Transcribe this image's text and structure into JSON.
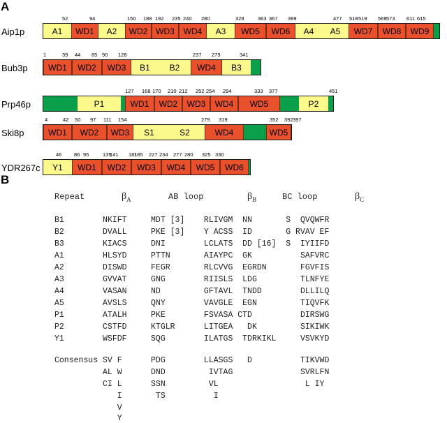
{
  "panel_a": {
    "letter": "A"
  },
  "panel_b": {
    "letter": "B"
  },
  "proteins": [
    {
      "name": "Aip1p",
      "segments": [
        {
          "label": "A1",
          "kind": "ins"
        },
        {
          "label": "WD1",
          "kind": "wd"
        },
        {
          "label": "A2",
          "kind": "ins"
        },
        {
          "label": "WD2",
          "kind": "wd"
        },
        {
          "label": "WD3",
          "kind": "wd"
        },
        {
          "label": "WD4",
          "kind": "wd"
        },
        {
          "label": "A3",
          "kind": "ins"
        },
        {
          "label": "WD5",
          "kind": "wd"
        },
        {
          "label": "WD6",
          "kind": "wd"
        },
        {
          "label": "A4",
          "kind": "ins"
        },
        {
          "label": "A5",
          "kind": "ins"
        },
        {
          "label": "WD7",
          "kind": "wd"
        },
        {
          "label": "WD8",
          "kind": "wd"
        },
        {
          "label": "WD9",
          "kind": "wd"
        }
      ],
      "ticks": [
        "52",
        "94",
        "150",
        "188",
        "192",
        "235",
        "240",
        "280",
        "328",
        "363",
        "367",
        "399",
        "477",
        "518",
        "519",
        "569",
        "573",
        "611",
        "615"
      ]
    },
    {
      "name": "Bub3p",
      "segments": [
        {
          "label": "WD1",
          "kind": "wd"
        },
        {
          "label": "WD2",
          "kind": "wd"
        },
        {
          "label": "WD3",
          "kind": "wd"
        },
        {
          "label": "B1",
          "kind": "ins"
        },
        {
          "label": "B2",
          "kind": "ins"
        },
        {
          "label": "WD4",
          "kind": "wd"
        },
        {
          "label": "B3",
          "kind": "ins"
        }
      ],
      "ticks": [
        "1",
        "39",
        "44",
        "85",
        "90",
        "128",
        "237",
        "279",
        "341"
      ]
    },
    {
      "name": "Prp46p",
      "segments": [
        {
          "label": "P1",
          "kind": "ins"
        },
        {
          "label": "WD1",
          "kind": "wd"
        },
        {
          "label": "WD2",
          "kind": "wd"
        },
        {
          "label": "WD3",
          "kind": "wd"
        },
        {
          "label": "WD4",
          "kind": "wd"
        },
        {
          "label": "WD5",
          "kind": "wd"
        },
        {
          "label": "P2",
          "kind": "ins"
        }
      ],
      "ticks": [
        "127",
        "168",
        "170",
        "210",
        "212",
        "252",
        "254",
        "294",
        "333",
        "377",
        "451"
      ]
    },
    {
      "name": "Ski8p",
      "segments": [
        {
          "label": "WD1",
          "kind": "wd"
        },
        {
          "label": "WD2",
          "kind": "wd"
        },
        {
          "label": "WD3",
          "kind": "wd"
        },
        {
          "label": "S1",
          "kind": "ins"
        },
        {
          "label": "S2",
          "kind": "ins"
        },
        {
          "label": "WD4",
          "kind": "wd"
        },
        {
          "label": "WD5",
          "kind": "wd"
        }
      ],
      "ticks": [
        "4",
        "42",
        "50",
        "97",
        "111",
        "154",
        "279",
        "319",
        "352",
        "392",
        "397"
      ]
    },
    {
      "name": "YDR267c",
      "segments": [
        {
          "label": "Y1",
          "kind": "ins"
        },
        {
          "label": "WD1",
          "kind": "wd"
        },
        {
          "label": "WD2",
          "kind": "wd"
        },
        {
          "label": "WD3",
          "kind": "wd"
        },
        {
          "label": "WD4",
          "kind": "wd"
        },
        {
          "label": "WD5",
          "kind": "wd"
        },
        {
          "label": "WD6",
          "kind": "wd"
        }
      ],
      "ticks": [
        "46",
        "86",
        "95",
        "135",
        "141",
        "181",
        "185",
        "227",
        "234",
        "277",
        "280",
        "325",
        "330"
      ]
    }
  ],
  "table": {
    "header": {
      "repeat": "Repeat",
      "ab_loop": "AB loop",
      "bc_loop": "BC loop",
      "beta": "β",
      "sub_a": "A",
      "sub_b": "B",
      "sub_c": "C"
    },
    "rows": [
      "B1        NKIFT     MDT [3]    RLIVGM  NN       S  QVQWFR",
      "B2        DVALL     PKE [3]    Y ACSS  ID       G RVAV EF",
      "B3        KIACS     DNI        LCLATS  DD [16]  S  IYIIFD",
      "A1        HLSYD     PTTN       AIAYPC  GK          SAFVRC",
      "A2        DISWD     FEGR       RLCVVG  EGRDN       FGVFIS",
      "A3        GVVAT     GNG        RIISLS  LDG         TLNFYE",
      "A4        VASAN     ND         GFTAVL  TNDD        DLLILQ",
      "A5        AVSLS     QNY        VAVGLE  EGN         TIQVFK",
      "P1        ATALH     PKE        FSVASA CTD          DIRSWG",
      "P2        CSTFD     KTGLR      LITGEA   DK         SIKIWK",
      "Y1        WSFDF     SQG        ILATGS  TDRKIKL     VSVKYD"
    ],
    "consensus": [
      "Consensus SV F      PDG        LLASGS   D          TIKVWD",
      "          AL W      DND         IVTAG              SVRLFN",
      "          CI L      SSN         VL                  L IY",
      "             I       TS          I",
      "             V",
      "             Y"
    ]
  }
}
